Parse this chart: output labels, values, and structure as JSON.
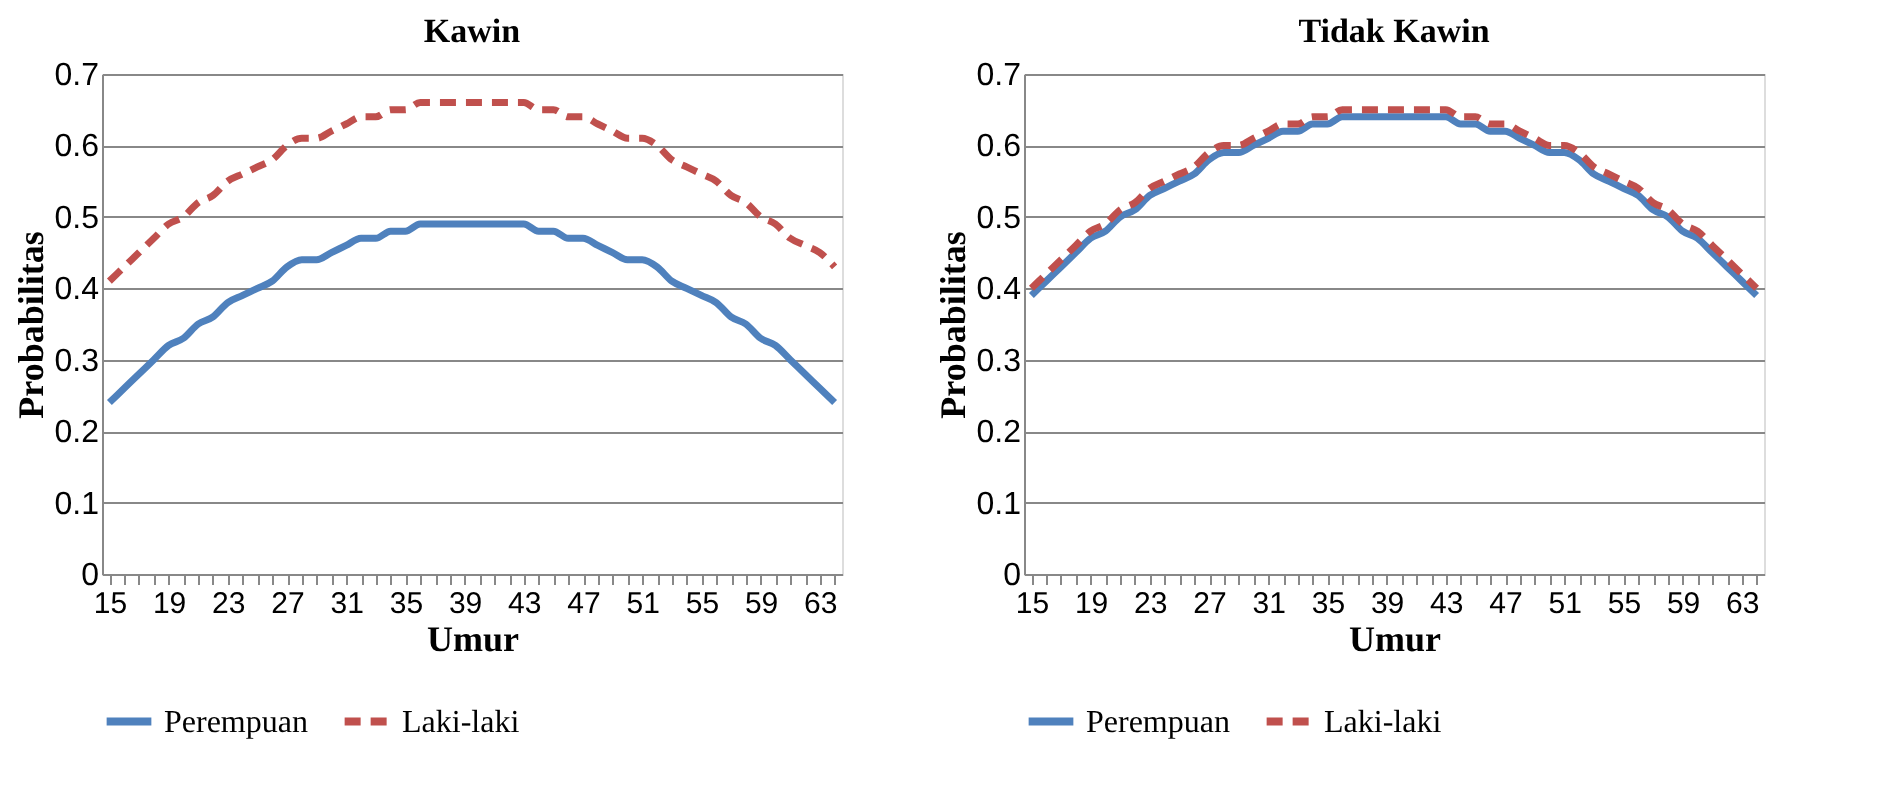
{
  "chart_data": [
    {
      "type": "line",
      "title": "Kawin",
      "xlabel": "Umur",
      "ylabel": "Probabilitas",
      "categories": [
        "15",
        null,
        null,
        null,
        "19",
        null,
        null,
        null,
        "23",
        null,
        null,
        null,
        "27",
        null,
        null,
        null,
        "31",
        null,
        null,
        null,
        "35",
        null,
        null,
        null,
        "39",
        null,
        null,
        null,
        "43",
        null,
        null,
        null,
        "47",
        null,
        null,
        null,
        "51",
        null,
        null,
        null,
        "55",
        null,
        null,
        null,
        "59",
        null,
        null,
        null,
        "63",
        null
      ],
      "series": [
        {
          "name": "Perempuan",
          "color": "#4f81bd",
          "line_style": "solid",
          "values": [
            0.24,
            0.26,
            0.28,
            0.3,
            0.32,
            0.33,
            0.35,
            0.36,
            0.38,
            0.39,
            0.4,
            0.41,
            0.43,
            0.44,
            0.44,
            0.45,
            0.46,
            0.47,
            0.47,
            0.48,
            0.48,
            0.49,
            0.49,
            0.49,
            0.49,
            0.49,
            0.49,
            0.49,
            0.49,
            0.48,
            0.48,
            0.47,
            0.47,
            0.46,
            0.45,
            0.44,
            0.44,
            0.43,
            0.41,
            0.4,
            0.39,
            0.38,
            0.36,
            0.35,
            0.33,
            0.32,
            0.3,
            0.28,
            0.26,
            0.24
          ]
        },
        {
          "name": "Laki-laki",
          "color": "#c0504d",
          "line_style": "dashed",
          "values": [
            0.41,
            0.43,
            0.45,
            0.47,
            0.49,
            0.5,
            0.52,
            0.53,
            0.55,
            0.56,
            0.57,
            0.58,
            0.6,
            0.61,
            0.61,
            0.62,
            0.63,
            0.64,
            0.64,
            0.65,
            0.65,
            0.66,
            0.66,
            0.66,
            0.66,
            0.66,
            0.66,
            0.66,
            0.66,
            0.65,
            0.65,
            0.64,
            0.64,
            0.63,
            0.62,
            0.61,
            0.61,
            0.6,
            0.58,
            0.57,
            0.56,
            0.55,
            0.53,
            0.52,
            0.5,
            0.49,
            0.47,
            0.46,
            0.45,
            0.43
          ]
        }
      ],
      "ylim": [
        0,
        0.7
      ],
      "yticks": [
        0,
        0.1,
        0.2,
        0.3,
        0.4,
        0.5,
        0.6,
        0.7
      ],
      "grid": "y",
      "legend": "bottom"
    },
    {
      "type": "line",
      "title": "Tidak Kawin",
      "xlabel": "Umur",
      "ylabel": "Probabilitas",
      "categories": [
        "15",
        null,
        null,
        null,
        "19",
        null,
        null,
        null,
        "23",
        null,
        null,
        null,
        "27",
        null,
        null,
        null,
        "31",
        null,
        null,
        null,
        "35",
        null,
        null,
        null,
        "39",
        null,
        null,
        null,
        "43",
        null,
        null,
        null,
        "47",
        null,
        null,
        null,
        "51",
        null,
        null,
        null,
        "55",
        null,
        null,
        null,
        "59",
        null,
        null,
        null,
        "63",
        null
      ],
      "series": [
        {
          "name": "Perempuan",
          "color": "#4f81bd",
          "line_style": "solid",
          "values": [
            0.39,
            0.41,
            0.43,
            0.45,
            0.47,
            0.48,
            0.5,
            0.51,
            0.53,
            0.54,
            0.55,
            0.56,
            0.58,
            0.59,
            0.59,
            0.6,
            0.61,
            0.62,
            0.62,
            0.63,
            0.63,
            0.64,
            0.64,
            0.64,
            0.64,
            0.64,
            0.64,
            0.64,
            0.64,
            0.63,
            0.63,
            0.62,
            0.62,
            0.61,
            0.6,
            0.59,
            0.59,
            0.58,
            0.56,
            0.55,
            0.54,
            0.53,
            0.51,
            0.5,
            0.48,
            0.47,
            0.45,
            0.43,
            0.41,
            0.39
          ]
        },
        {
          "name": "Laki-laki",
          "color": "#c0504d",
          "line_style": "dashed",
          "values": [
            0.4,
            0.42,
            0.44,
            0.46,
            0.48,
            0.49,
            0.51,
            0.52,
            0.54,
            0.55,
            0.56,
            0.57,
            0.59,
            0.6,
            0.6,
            0.61,
            0.62,
            0.63,
            0.63,
            0.64,
            0.64,
            0.65,
            0.65,
            0.65,
            0.65,
            0.65,
            0.65,
            0.65,
            0.65,
            0.64,
            0.64,
            0.63,
            0.63,
            0.62,
            0.61,
            0.6,
            0.6,
            0.59,
            0.57,
            0.56,
            0.55,
            0.54,
            0.52,
            0.51,
            0.49,
            0.48,
            0.46,
            0.44,
            0.42,
            0.4
          ]
        }
      ],
      "ylim": [
        0,
        0.7
      ],
      "yticks": [
        0,
        0.1,
        0.2,
        0.3,
        0.4,
        0.5,
        0.6,
        0.7
      ],
      "grid": "y",
      "legend": "bottom"
    }
  ]
}
